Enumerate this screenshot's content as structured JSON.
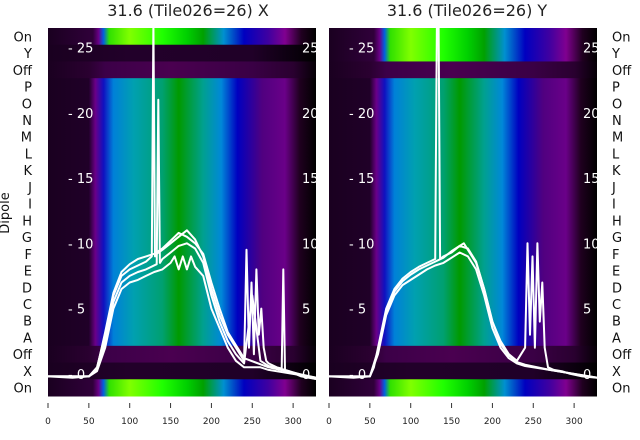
{
  "chart_data": [
    {
      "type": "heatmap",
      "title": "31.6 (Tile026=26) X",
      "ylabel": "Dipole",
      "row_labels": [
        "On",
        "Y",
        "Off",
        "P",
        "O",
        "N",
        "M",
        "L",
        "K",
        "J",
        "I",
        "H",
        "G",
        "F",
        "E",
        "D",
        "C",
        "B",
        "A",
        "Off",
        "X",
        "On"
      ],
      "row_kinds": [
        "on",
        "off2",
        "off",
        "n",
        "n",
        "n",
        "n",
        "n",
        "n",
        "n",
        "n",
        "n",
        "n",
        "n",
        "n",
        "n",
        "n",
        "n",
        "n",
        "off",
        "off2",
        "on"
      ],
      "xlim": [
        0,
        328
      ],
      "xticks": [
        0,
        50,
        100,
        150,
        200,
        250,
        300
      ],
      "overlay_ylim": [
        -1.7,
        26.5
      ],
      "overlay_yticks": [
        0,
        5,
        10,
        15,
        20,
        25
      ],
      "overlay_series": [
        {
          "name": "line1",
          "x": [
            0,
            30,
            50,
            60,
            70,
            80,
            90,
            100,
            110,
            120,
            127,
            129,
            131,
            133,
            140,
            150,
            160,
            170,
            180,
            190,
            200,
            210,
            220,
            230,
            240,
            243,
            246,
            249,
            252,
            255,
            258,
            261,
            264,
            267,
            270,
            280,
            286,
            288,
            290,
            295,
            310,
            328
          ],
          "y": [
            -0.2,
            -0.3,
            -0.2,
            0.5,
            3,
            6,
            7.5,
            8,
            8.3,
            8.6,
            9,
            27,
            9,
            9.2,
            9.5,
            10,
            10.5,
            11,
            10.3,
            9,
            6.5,
            4.5,
            3,
            2,
            1,
            9.5,
            2,
            7,
            1.5,
            8,
            3,
            5,
            2,
            1,
            0.8,
            0.5,
            0.4,
            8,
            0.3,
            0.2,
            -0.2,
            -0.4
          ]
        },
        {
          "name": "line2",
          "x": [
            0,
            50,
            60,
            70,
            80,
            90,
            100,
            110,
            120,
            133,
            135,
            137,
            140,
            150,
            160,
            170,
            180,
            190,
            200,
            210,
            220,
            230,
            240,
            250,
            260,
            270,
            290,
            328
          ],
          "y": [
            -0.2,
            -0.2,
            0.3,
            2.5,
            5.5,
            7,
            7.5,
            7.8,
            8,
            8.4,
            21,
            8.5,
            8.8,
            9.3,
            9.8,
            10,
            9.6,
            8.5,
            6,
            4,
            2.5,
            1.5,
            0.8,
            6,
            1,
            0.6,
            0.3,
            -0.4
          ]
        },
        {
          "name": "line3",
          "x": [
            0,
            50,
            60,
            70,
            80,
            90,
            100,
            110,
            120,
            130,
            140,
            150,
            155,
            160,
            165,
            170,
            175,
            180,
            190,
            200,
            210,
            220,
            230,
            240,
            260,
            270,
            328
          ],
          "y": [
            -0.2,
            -0.2,
            0.2,
            2,
            5,
            6.5,
            7,
            7.2,
            7.5,
            7.8,
            8,
            8.5,
            9,
            8,
            9,
            8,
            9,
            8.2,
            7.5,
            5,
            3.5,
            2,
            1,
            0.5,
            0.5,
            0.3,
            -0.3
          ]
        },
        {
          "name": "line4",
          "x": [
            0,
            50,
            60,
            70,
            80,
            90,
            100,
            110,
            120,
            130,
            140,
            150,
            160,
            170,
            180,
            190,
            200,
            210,
            220,
            230,
            240,
            270,
            328
          ],
          "y": [
            -0.2,
            -0.2,
            0.4,
            3.2,
            6.2,
            7.8,
            8.4,
            8.8,
            9,
            9.2,
            9.6,
            10.2,
            10.8,
            10.5,
            10,
            9.2,
            7,
            5,
            3.2,
            2.2,
            1.2,
            0.5,
            -0.3
          ]
        }
      ]
    },
    {
      "type": "heatmap",
      "title": "31.6 (Tile026=26) Y",
      "row_labels": [
        "On",
        "Y",
        "Off",
        "P",
        "O",
        "N",
        "M",
        "L",
        "K",
        "J",
        "I",
        "H",
        "G",
        "F",
        "E",
        "D",
        "C",
        "B",
        "A",
        "Off",
        "X",
        "On"
      ],
      "row_kinds": [
        "on",
        "on",
        "off",
        "n",
        "n",
        "n",
        "n",
        "n",
        "n",
        "n",
        "n",
        "n",
        "n",
        "n",
        "n",
        "n",
        "n",
        "n",
        "n",
        "off",
        "off2",
        "on"
      ],
      "xlim": [
        0,
        328
      ],
      "xticks": [
        0,
        50,
        100,
        150,
        200,
        250,
        300
      ],
      "overlay_ylim": [
        -1.7,
        26.5
      ],
      "overlay_yticks": [
        0,
        5,
        10,
        15,
        20,
        25
      ],
      "overlay_series": [
        {
          "name": "line1",
          "x": [
            0,
            30,
            50,
            55,
            60,
            70,
            80,
            90,
            100,
            110,
            120,
            130,
            132,
            134,
            136,
            140,
            150,
            160,
            165,
            170,
            180,
            190,
            200,
            210,
            220,
            230,
            240,
            243,
            246,
            249,
            252,
            255,
            258,
            261,
            264,
            268,
            275,
            285,
            295,
            310,
            328
          ],
          "y": [
            -0.2,
            -0.3,
            -0.2,
            0.5,
            2,
            5,
            6.5,
            7.3,
            7.8,
            8.2,
            8.5,
            8.8,
            27,
            28,
            8.8,
            9,
            9.3,
            9.8,
            10,
            9.5,
            8.5,
            6.5,
            4,
            2.5,
            1.5,
            1,
            2,
            10,
            3,
            9,
            2,
            10,
            4,
            7,
            2,
            0.5,
            0.3,
            0.2,
            0,
            -0.2,
            -0.3
          ]
        },
        {
          "name": "line2",
          "x": [
            0,
            50,
            60,
            70,
            80,
            90,
            100,
            110,
            120,
            130,
            140,
            150,
            160,
            170,
            180,
            190,
            200,
            210,
            220,
            230,
            240,
            270,
            328
          ],
          "y": [
            -0.2,
            -0.2,
            1.5,
            4.5,
            6,
            6.8,
            7.2,
            7.6,
            8,
            8.3,
            8.5,
            8.9,
            9.3,
            9,
            8,
            6,
            3.5,
            2,
            1.2,
            0.8,
            0.6,
            0.3,
            -0.3
          ]
        },
        {
          "name": "line3",
          "x": [
            0,
            50,
            60,
            70,
            80,
            90,
            100,
            110,
            120,
            130,
            140,
            150,
            160,
            170,
            180,
            190,
            200,
            210,
            220,
            230,
            240,
            270,
            328
          ],
          "y": [
            -0.2,
            -0.2,
            1.8,
            4.8,
            6.3,
            7.1,
            7.6,
            8,
            8.3,
            8.6,
            8.9,
            9.4,
            9.8,
            9.6,
            8.6,
            6.5,
            4,
            2.3,
            1.4,
            0.9,
            0.7,
            0.3,
            -0.3
          ]
        }
      ]
    }
  ],
  "colors": {
    "normal": [
      [
        0,
        "#1a0020"
      ],
      [
        50,
        "#200028"
      ],
      [
        58,
        "#6a0088"
      ],
      [
        68,
        "#1010c0"
      ],
      [
        80,
        "#0080d8"
      ],
      [
        105,
        "#00a0b0"
      ],
      [
        140,
        "#00a070"
      ],
      [
        160,
        "#009a00"
      ],
      [
        190,
        "#00a090"
      ],
      [
        212,
        "#0088d8"
      ],
      [
        232,
        "#0000c0"
      ],
      [
        262,
        "#500080"
      ],
      [
        290,
        "#6a0088"
      ],
      [
        308,
        "#200020"
      ],
      [
        328,
        "#000000"
      ]
    ],
    "on": [
      [
        0,
        "#1a0020"
      ],
      [
        55,
        "#30003a"
      ],
      [
        62,
        "#6a0088"
      ],
      [
        68,
        "#0060e0"
      ],
      [
        75,
        "#30e000"
      ],
      [
        100,
        "#80ff00"
      ],
      [
        140,
        "#20ff00"
      ],
      [
        170,
        "#00d000"
      ],
      [
        190,
        "#00a000"
      ],
      [
        215,
        "#0090d0"
      ],
      [
        240,
        "#0000c0"
      ],
      [
        270,
        "#4000a0"
      ],
      [
        290,
        "#800090"
      ],
      [
        310,
        "#200020"
      ],
      [
        328,
        "#000000"
      ]
    ],
    "off": [
      [
        0,
        "#1a0020"
      ],
      [
        50,
        "#2a0030"
      ],
      [
        70,
        "#3c0048"
      ],
      [
        150,
        "#4a0050"
      ],
      [
        250,
        "#3a0045"
      ],
      [
        300,
        "#2a0030"
      ],
      [
        328,
        "#050005"
      ]
    ],
    "off2": [
      [
        0,
        "#1a0020"
      ],
      [
        100,
        "#22002a"
      ],
      [
        250,
        "#200028"
      ],
      [
        328,
        "#000000"
      ]
    ],
    "line": "#ffffff"
  }
}
